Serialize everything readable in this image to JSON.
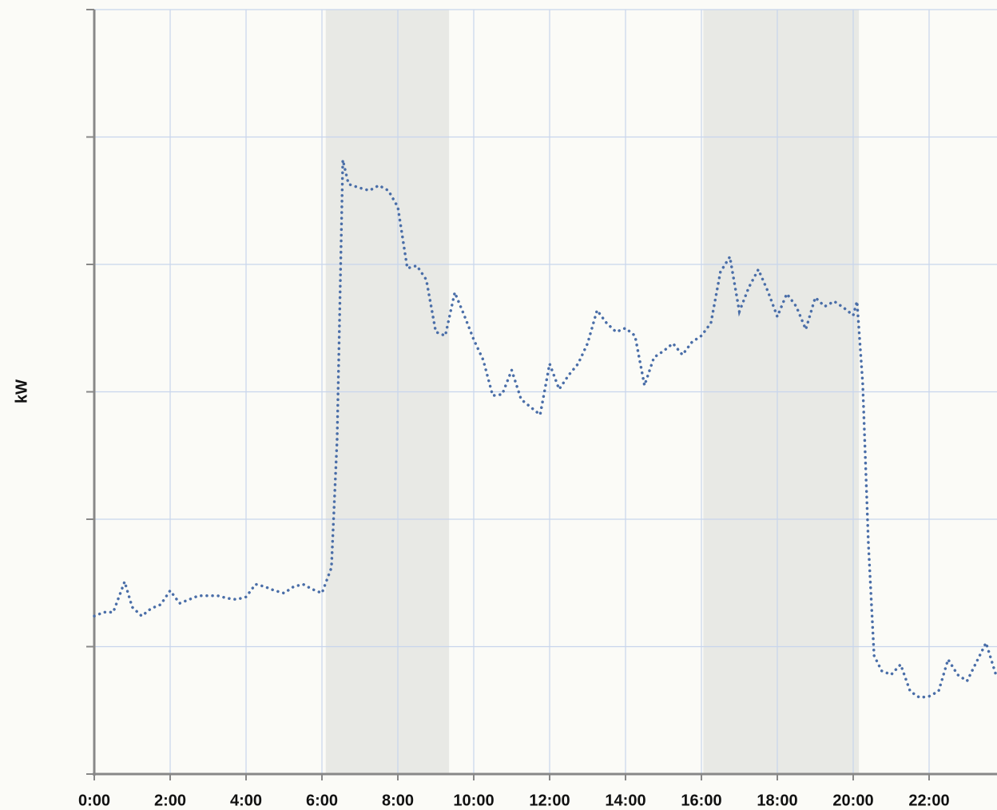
{
  "chart_data": {
    "type": "line",
    "y_label": "kW",
    "x": [
      0,
      0.25,
      0.5,
      0.8,
      1,
      1.25,
      1.5,
      1.75,
      2,
      2.25,
      2.5,
      2.75,
      3,
      3.25,
      3.5,
      3.75,
      4,
      4.25,
      4.5,
      4.75,
      5,
      5.25,
      5.5,
      5.75,
      6,
      6.25,
      6.4,
      6.55,
      6.7,
      7,
      7.25,
      7.5,
      7.75,
      8,
      8.25,
      8.5,
      8.75,
      9,
      9.25,
      9.5,
      9.75,
      10,
      10.25,
      10.5,
      10.75,
      11,
      11.25,
      11.5,
      11.75,
      12,
      12.25,
      12.5,
      12.75,
      13,
      13.25,
      13.5,
      13.75,
      14,
      14.25,
      14.5,
      14.75,
      15,
      15.25,
      15.5,
      15.75,
      16,
      16.25,
      16.5,
      16.75,
      17,
      17.25,
      17.5,
      17.75,
      18,
      18.25,
      18.5,
      18.75,
      19,
      19.25,
      19.5,
      19.75,
      20,
      20.1,
      20.25,
      20.4,
      20.55,
      20.75,
      21,
      21.25,
      21.5,
      21.75,
      22,
      22.25,
      22.5,
      22.75,
      23,
      23.25,
      23.5,
      23.75
    ],
    "series": [
      {
        "name": "kW",
        "color": "#4a6ea8",
        "values": [
          1.24,
          1.27,
          1.27,
          1.51,
          1.31,
          1.24,
          1.3,
          1.33,
          1.44,
          1.34,
          1.37,
          1.4,
          1.4,
          1.4,
          1.38,
          1.37,
          1.39,
          1.49,
          1.47,
          1.44,
          1.42,
          1.47,
          1.49,
          1.45,
          1.42,
          1.62,
          2.63,
          4.82,
          4.63,
          4.6,
          4.58,
          4.62,
          4.58,
          4.45,
          3.97,
          3.99,
          3.88,
          3.47,
          3.44,
          3.78,
          3.6,
          3.41,
          3.25,
          2.97,
          2.98,
          3.17,
          2.94,
          2.88,
          2.82,
          3.22,
          3.02,
          3.13,
          3.22,
          3.38,
          3.64,
          3.54,
          3.47,
          3.5,
          3.44,
          3.05,
          3.27,
          3.32,
          3.38,
          3.29,
          3.39,
          3.44,
          3.54,
          3.94,
          4.06,
          3.63,
          3.82,
          3.96,
          3.79,
          3.59,
          3.77,
          3.67,
          3.49,
          3.74,
          3.67,
          3.71,
          3.66,
          3.6,
          3.71,
          3.07,
          1.81,
          0.93,
          0.81,
          0.78,
          0.86,
          0.65,
          0.6,
          0.61,
          0.65,
          0.9,
          0.78,
          0.73,
          0.88,
          1.03,
          0.79
        ]
      }
    ],
    "shaded_ranges": [
      [
        6.1,
        9.35
      ],
      [
        16.05,
        20.15
      ]
    ],
    "xlim": [
      0,
      23.8
    ],
    "xticks": [
      {
        "value": 0,
        "label": "0:00"
      },
      {
        "value": 2,
        "label": "2:00"
      },
      {
        "value": 4,
        "label": "4:00"
      },
      {
        "value": 6,
        "label": "6:00"
      },
      {
        "value": 8,
        "label": "8:00"
      },
      {
        "value": 10,
        "label": "10:00"
      },
      {
        "value": 12,
        "label": "12:00"
      },
      {
        "value": 14,
        "label": "14:00"
      },
      {
        "value": 16,
        "label": "16:00"
      },
      {
        "value": 18,
        "label": "18:00"
      },
      {
        "value": 20,
        "label": "20:00"
      },
      {
        "value": 22,
        "label": "22:00"
      }
    ],
    "ylim": [
      0,
      6
    ],
    "yticks": [
      0,
      1,
      2,
      3,
      4,
      5,
      6
    ],
    "grid": true
  }
}
